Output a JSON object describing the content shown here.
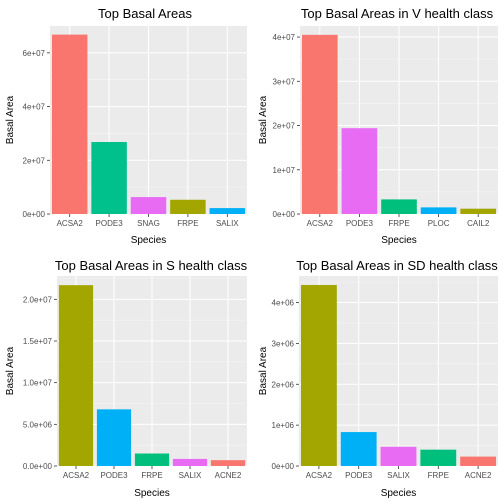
{
  "colors": {
    "ACSA2": "#F8766D",
    "PODE3": "#00BA38",
    "SNAG": "#D39200",
    "FRPE": "#93AA00",
    "SALIX": "#00B9E3",
    "PLOC": "#00C19F",
    "CAIL2": "#DB72FB",
    "ACNE2": "#FF61C3"
  },
  "chart_data": [
    {
      "type": "bar",
      "title": "Top Basal Areas",
      "xlabel": "Species",
      "ylabel": "Basal Area",
      "categories": [
        "ACSA2",
        "PODE3",
        "SNAG",
        "FRPE",
        "SALIX"
      ],
      "values": [
        66800000,
        26800000,
        6300000,
        5300000,
        2200000
      ],
      "bar_colors": [
        "#F8766D",
        "#00C08B",
        "#E76BF3",
        "#A3A500",
        "#00B0F6"
      ],
      "ylim": [
        0,
        70000000
      ],
      "yticks": [
        0,
        20000000,
        40000000,
        60000000
      ],
      "ytick_labels": [
        "0e+00",
        "2e+07",
        "4e+07",
        "6e+07"
      ],
      "grid": true,
      "legend": "none"
    },
    {
      "type": "bar",
      "title": "Top Basal Areas in V health class",
      "xlabel": "Species",
      "ylabel": "Basal Area",
      "categories": [
        "ACSA2",
        "PODE3",
        "FRPE",
        "PLOC",
        "CAIL2"
      ],
      "values": [
        40500000,
        19400000,
        3300000,
        1500000,
        1200000
      ],
      "bar_colors": [
        "#F8766D",
        "#E76BF3",
        "#00BF7D",
        "#00B0F6",
        "#A3A500"
      ],
      "ylim": [
        0,
        42500000
      ],
      "yticks": [
        0,
        10000000,
        20000000,
        30000000,
        40000000
      ],
      "ytick_labels": [
        "0e+00",
        "1e+07",
        "2e+07",
        "3e+07",
        "4e+07"
      ],
      "grid": true,
      "legend": "none"
    },
    {
      "type": "bar",
      "title": "Top Basal Areas in S health class",
      "xlabel": "Species",
      "ylabel": "Basal Area",
      "categories": [
        "ACSA2",
        "PODE3",
        "FRPE",
        "SALIX",
        "ACNE2"
      ],
      "values": [
        21700000,
        6800000,
        1500000,
        850000,
        700000
      ],
      "bar_colors": [
        "#A3A500",
        "#00B0F6",
        "#00BF7D",
        "#E76BF3",
        "#F8766D"
      ],
      "ylim": [
        0,
        22800000
      ],
      "yticks": [
        0,
        5000000,
        10000000,
        15000000,
        20000000
      ],
      "ytick_labels": [
        "0.0e+00",
        "5.0e+06",
        "1.0e+07",
        "1.5e+07",
        "2.0e+07"
      ],
      "grid": true,
      "legend": "none"
    },
    {
      "type": "bar",
      "title": "Top Basal Areas in SD health class",
      "xlabel": "Species",
      "ylabel": "Basal Area",
      "categories": [
        "ACSA2",
        "PODE3",
        "SALIX",
        "FRPE",
        "ACNE2"
      ],
      "values": [
        4430000,
        830000,
        470000,
        400000,
        230000
      ],
      "bar_colors": [
        "#A3A500",
        "#00B0F6",
        "#E76BF3",
        "#00BF7D",
        "#F8766D"
      ],
      "ylim": [
        0,
        4650000
      ],
      "yticks": [
        0,
        1000000,
        2000000,
        3000000,
        4000000
      ],
      "ytick_labels": [
        "0e+00",
        "1e+06",
        "2e+06",
        "3e+06",
        "4e+06"
      ],
      "grid": true,
      "legend": "none"
    }
  ]
}
